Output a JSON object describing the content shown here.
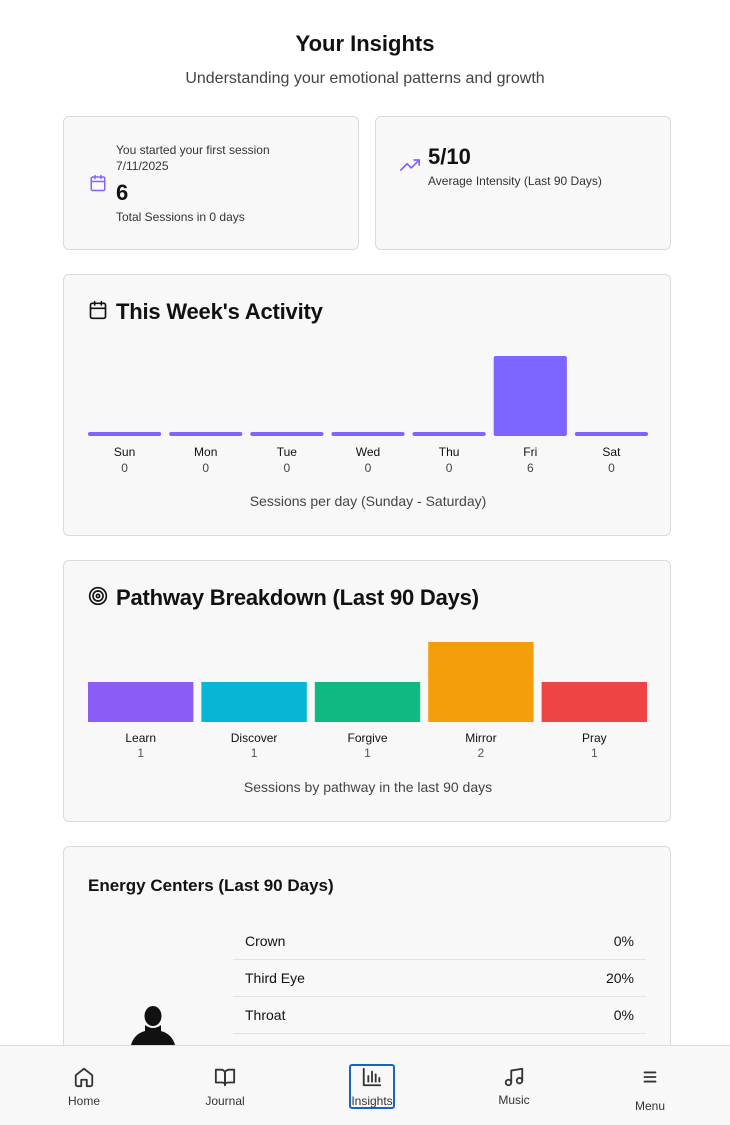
{
  "header": {
    "title": "Your Insights",
    "subtitle": "Understanding your emotional patterns and growth"
  },
  "stats": {
    "sessions": {
      "icon": "calendar-icon",
      "note_line1": "You started your first session",
      "note_line2": "7/11/2025",
      "value": "6",
      "label": "Total Sessions in 0 days"
    },
    "intensity": {
      "icon": "trending-up-icon",
      "value": "5/10",
      "label": "Average Intensity (Last 90 Days)"
    }
  },
  "activity": {
    "title": "This Week's Activity",
    "icon": "calendar-icon",
    "caption": "Sessions per day (Sunday - Saturday)",
    "chart_data": {
      "type": "bar",
      "categories": [
        "Sun",
        "Mon",
        "Tue",
        "Wed",
        "Thu",
        "Fri",
        "Sat"
      ],
      "values": [
        0,
        0,
        0,
        0,
        0,
        6,
        0
      ],
      "color": "#7c66ff"
    }
  },
  "pathway": {
    "title": "Pathway Breakdown (Last 90 Days)",
    "icon": "target-icon",
    "caption": "Sessions by pathway in the last 90 days",
    "chart_data": {
      "type": "bar",
      "categories": [
        "Learn",
        "Discover",
        "Forgive",
        "Mirror",
        "Pray"
      ],
      "values": [
        1,
        1,
        1,
        2,
        1
      ],
      "colors": [
        "#8b5cf6",
        "#06b6d4",
        "#10b981",
        "#f59e0b",
        "#ef4444"
      ]
    }
  },
  "energy": {
    "title": "Energy Centers (Last 90 Days)",
    "silhouette_icon": "person-silhouette-icon",
    "rows": [
      {
        "name": "Crown",
        "value": "0%"
      },
      {
        "name": "Third Eye",
        "value": "20%"
      },
      {
        "name": "Throat",
        "value": "0%"
      }
    ]
  },
  "nav": {
    "active": "Insights",
    "active_color": "#1565c0",
    "items": [
      {
        "label": "Home",
        "icon": "home-icon"
      },
      {
        "label": "Journal",
        "icon": "book-icon"
      },
      {
        "label": "Insights",
        "icon": "bar-chart-icon"
      },
      {
        "label": "Music",
        "icon": "music-icon"
      },
      {
        "label": "Menu",
        "icon": "menu-icon"
      }
    ]
  }
}
